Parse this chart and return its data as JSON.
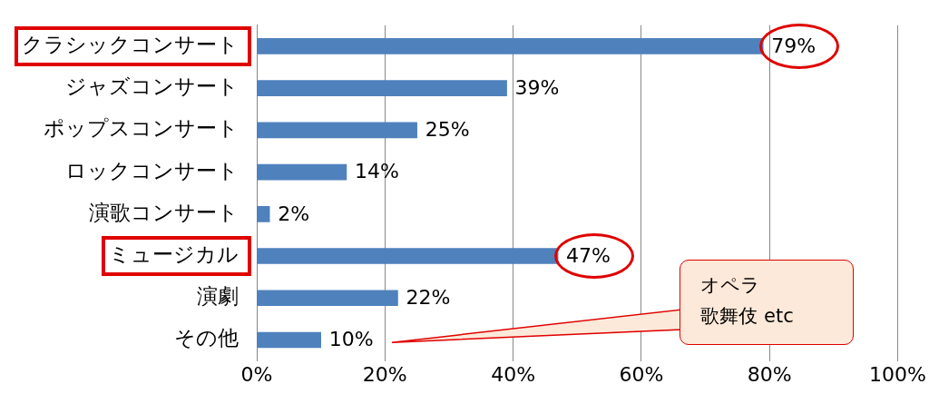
{
  "chart_data": {
    "type": "bar",
    "orientation": "horizontal",
    "categories": [
      "クラシックコンサート",
      "ジャズコンサート",
      "ポップスコンサート",
      "ロックコンサート",
      "演歌コンサート",
      "ミュージカル",
      "演劇",
      "その他"
    ],
    "values": [
      79,
      39,
      25,
      14,
      2,
      47,
      22,
      10
    ],
    "value_labels": [
      "79%",
      "39%",
      "25%",
      "14%",
      "2%",
      "47%",
      "22%",
      "10%"
    ],
    "color": "#4f81bd",
    "xlim": [
      0,
      100
    ],
    "xticks": [
      {
        "value": 0,
        "label": "0%"
      },
      {
        "value": 20,
        "label": "20%"
      },
      {
        "value": 40,
        "label": "40%"
      },
      {
        "value": 60,
        "label": "60%"
      },
      {
        "value": 80,
        "label": "80%"
      },
      {
        "value": 100,
        "label": "100%"
      }
    ],
    "grid": "x",
    "legend": false,
    "annotations": [
      "オペラ",
      "歌舞伎 etc"
    ]
  }
}
